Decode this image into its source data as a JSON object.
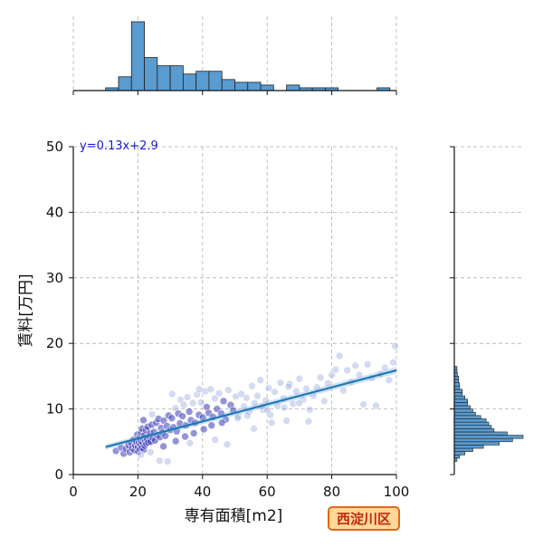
{
  "chart_data": {
    "type": "scatter",
    "xlabel": "専有面積[m2]",
    "ylabel": "賃料[万円]",
    "xlim": [
      0,
      100
    ],
    "ylim": [
      0,
      50
    ],
    "x_ticks": [
      0,
      20,
      40,
      60,
      80,
      100
    ],
    "y_ticks": [
      0,
      10,
      20,
      30,
      40,
      50
    ],
    "grid": true,
    "regression": {
      "label": "y=0.13x+2.9",
      "slope": 0.13,
      "intercept": 2.9,
      "x_range": [
        10,
        100
      ]
    },
    "district_label": "西淀川区",
    "scatter_points": [
      [
        13.2,
        3.6
      ],
      [
        14.8,
        4.1
      ],
      [
        15.6,
        3.2
      ],
      [
        16.3,
        3.9
      ],
      [
        17.1,
        4.5
      ],
      [
        17.5,
        3.4
      ],
      [
        18.0,
        4.8
      ],
      [
        18.2,
        4.0
      ],
      [
        18.6,
        5.3
      ],
      [
        19.0,
        3.7
      ],
      [
        19.2,
        4.4
      ],
      [
        19.5,
        5.0
      ],
      [
        19.8,
        6.1
      ],
      [
        20.0,
        4.2
      ],
      [
        20.1,
        3.5
      ],
      [
        20.3,
        4.9
      ],
      [
        20.5,
        5.6
      ],
      [
        20.6,
        3.9
      ],
      [
        20.8,
        4.6
      ],
      [
        21.0,
        6.4
      ],
      [
        21.0,
        5.2
      ],
      [
        21.2,
        4.1
      ],
      [
        21.3,
        7.0
      ],
      [
        21.5,
        4.8
      ],
      [
        21.6,
        5.5
      ],
      [
        21.8,
        3.8
      ],
      [
        22.0,
        6.0
      ],
      [
        22.1,
        4.4
      ],
      [
        22.3,
        5.1
      ],
      [
        22.5,
        6.8
      ],
      [
        22.6,
        4.7
      ],
      [
        22.8,
        5.4
      ],
      [
        23.0,
        7.3
      ],
      [
        23.2,
        4.9
      ],
      [
        23.5,
        5.8
      ],
      [
        23.8,
        6.3
      ],
      [
        24.0,
        5.0
      ],
      [
        24.3,
        7.6
      ],
      [
        24.6,
        5.6
      ],
      [
        25.0,
        6.5
      ],
      [
        25.3,
        5.2
      ],
      [
        25.7,
        7.9
      ],
      [
        26.0,
        6.0
      ],
      [
        26.4,
        8.5
      ],
      [
        26.8,
        5.7
      ],
      [
        27.2,
        7.1
      ],
      [
        27.6,
        6.4
      ],
      [
        28.0,
        8.2
      ],
      [
        28.5,
        5.9
      ],
      [
        29.0,
        7.4
      ],
      [
        29.5,
        9.0
      ],
      [
        30.0,
        6.8
      ],
      [
        30.5,
        8.6
      ],
      [
        31.0,
        7.2
      ],
      [
        31.6,
        10.1
      ],
      [
        32.0,
        6.6
      ],
      [
        32.5,
        9.3
      ],
      [
        33.0,
        7.8
      ],
      [
        33.2,
        11.4
      ],
      [
        33.8,
        8.9
      ],
      [
        34.2,
        10.6
      ],
      [
        34.8,
        7.5
      ],
      [
        35.3,
        11.8
      ],
      [
        35.9,
        9.6
      ],
      [
        36.4,
        8.3
      ],
      [
        37.0,
        10.9
      ],
      [
        37.7,
        7.9
      ],
      [
        38.3,
        12.2
      ],
      [
        38.9,
        9.1
      ],
      [
        39.5,
        11.0
      ],
      [
        40.1,
        8.7
      ],
      [
        40.8,
        12.7
      ],
      [
        41.3,
        10.3
      ],
      [
        41.9,
        9.4
      ],
      [
        42.5,
        13.0
      ],
      [
        43.2,
        8.8
      ],
      [
        43.8,
        11.6
      ],
      [
        44.5,
        10.0
      ],
      [
        45.1,
        12.4
      ],
      [
        45.8,
        9.3
      ],
      [
        46.5,
        11.2
      ],
      [
        47.2,
        8.4
      ],
      [
        48.0,
        12.9
      ],
      [
        48.7,
        10.6
      ],
      [
        49.5,
        9.8
      ],
      [
        50.3,
        11.9
      ],
      [
        51.1,
        8.9
      ],
      [
        52.0,
        12.3
      ],
      [
        52.8,
        10.4
      ],
      [
        53.6,
        11.7
      ],
      [
        54.5,
        9.6
      ],
      [
        55.3,
        13.5
      ],
      [
        56.1,
        10.9
      ],
      [
        57.0,
        12.0
      ],
      [
        57.9,
        14.4
      ],
      [
        58.7,
        9.9
      ],
      [
        59.6,
        11.3
      ],
      [
        60.5,
        13.2
      ],
      [
        61.4,
        7.9
      ],
      [
        62.3,
        12.6
      ],
      [
        63.2,
        10.5
      ],
      [
        64.1,
        14.0
      ],
      [
        65.1,
        11.6
      ],
      [
        66.0,
        8.2
      ],
      [
        67.0,
        13.8
      ],
      [
        68.0,
        10.8
      ],
      [
        69.0,
        12.7
      ],
      [
        70.0,
        14.6
      ],
      [
        71.1,
        11.4
      ],
      [
        72.1,
        13.1
      ],
      [
        73.2,
        9.9
      ],
      [
        74.3,
        12.0
      ],
      [
        75.4,
        13.3
      ],
      [
        76.5,
        14.8
      ],
      [
        77.7,
        11.2
      ],
      [
        78.8,
        13.9
      ],
      [
        80.0,
        15.2
      ],
      [
        81.2,
        16.0
      ],
      [
        82.4,
        18.1
      ],
      [
        83.6,
        12.8
      ],
      [
        84.8,
        15.9
      ],
      [
        86.0,
        14.1
      ],
      [
        87.3,
        16.6
      ],
      [
        88.5,
        15.2
      ],
      [
        89.8,
        10.7
      ],
      [
        91.1,
        16.8
      ],
      [
        92.4,
        14.7
      ],
      [
        93.7,
        10.5
      ],
      [
        95.0,
        15.3
      ],
      [
        96.4,
        16.3
      ],
      [
        97.7,
        14.4
      ],
      [
        99.0,
        17.1
      ],
      [
        99.6,
        19.6
      ],
      [
        20.9,
        3.0
      ],
      [
        26.7,
        2.1
      ],
      [
        29.2,
        2.0
      ],
      [
        24.4,
        9.2
      ],
      [
        36.1,
        4.8
      ],
      [
        43.9,
        5.3
      ],
      [
        47.6,
        4.6
      ],
      [
        55.9,
        7.0
      ],
      [
        61.0,
        9.1
      ],
      [
        30.6,
        12.3
      ],
      [
        39.0,
        13.0
      ],
      [
        58.5,
        10.4
      ],
      [
        66.6,
        13.4
      ],
      [
        72.8,
        8.1
      ],
      [
        21.7,
        8.3
      ],
      [
        23.9,
        3.4
      ],
      [
        27.9,
        4.3
      ],
      [
        31.7,
        5.1
      ],
      [
        34.6,
        5.8
      ],
      [
        37.3,
        6.3
      ],
      [
        40.4,
        6.9
      ],
      [
        42.8,
        7.5
      ],
      [
        46.0,
        7.9
      ],
      [
        50.9,
        8.6
      ],
      [
        53.9,
        9.0
      ],
      [
        60.1,
        9.8
      ],
      [
        65.3,
        10.2
      ],
      [
        69.9,
        10.9
      ]
    ],
    "top_histogram": {
      "bins": [
        [
          10,
          14,
          1
        ],
        [
          14,
          18,
          5
        ],
        [
          18,
          22,
          25
        ],
        [
          22,
          26,
          12
        ],
        [
          26,
          30,
          9
        ],
        [
          30,
          34,
          9
        ],
        [
          34,
          38,
          6
        ],
        [
          38,
          42,
          7
        ],
        [
          42,
          46,
          7
        ],
        [
          46,
          50,
          4
        ],
        [
          50,
          54,
          3
        ],
        [
          54,
          58,
          3
        ],
        [
          58,
          62,
          2
        ],
        [
          62,
          66,
          0
        ],
        [
          66,
          70,
          2
        ],
        [
          70,
          74,
          1
        ],
        [
          74,
          78,
          1
        ],
        [
          78,
          82,
          1
        ],
        [
          82,
          86,
          0
        ],
        [
          86,
          90,
          0
        ],
        [
          90,
          94,
          0
        ],
        [
          94,
          98,
          1
        ],
        [
          98,
          100,
          0
        ]
      ]
    },
    "right_histogram": {
      "bins": [
        [
          2.0,
          2.5,
          0.5
        ],
        [
          2.5,
          3.0,
          1.0
        ],
        [
          3.0,
          3.5,
          2.0
        ],
        [
          3.5,
          4.0,
          3.5
        ],
        [
          4.0,
          4.5,
          5.5
        ],
        [
          4.5,
          5.0,
          8.5
        ],
        [
          5.0,
          5.5,
          11.0
        ],
        [
          5.5,
          6.0,
          13.0
        ],
        [
          6.0,
          6.5,
          10.0
        ],
        [
          6.5,
          7.0,
          7.5
        ],
        [
          7.0,
          7.5,
          7.0
        ],
        [
          7.5,
          8.0,
          6.5
        ],
        [
          8.0,
          8.5,
          6.0
        ],
        [
          8.5,
          9.0,
          5.0
        ],
        [
          9.0,
          9.5,
          4.0
        ],
        [
          9.5,
          10.0,
          3.5
        ],
        [
          10.0,
          10.5,
          3.0
        ],
        [
          10.5,
          11.0,
          2.5
        ],
        [
          11.0,
          11.5,
          2.5
        ],
        [
          11.5,
          12.0,
          2.0
        ],
        [
          12.0,
          12.5,
          1.5
        ],
        [
          12.5,
          13.0,
          1.5
        ],
        [
          13.0,
          13.5,
          1.0
        ],
        [
          13.5,
          14.0,
          1.0
        ],
        [
          14.0,
          14.5,
          0.8
        ],
        [
          14.5,
          15.0,
          0.8
        ],
        [
          15.0,
          15.5,
          0.6
        ],
        [
          15.5,
          16.0,
          0.5
        ],
        [
          16.0,
          16.5,
          0.5
        ]
      ]
    }
  }
}
